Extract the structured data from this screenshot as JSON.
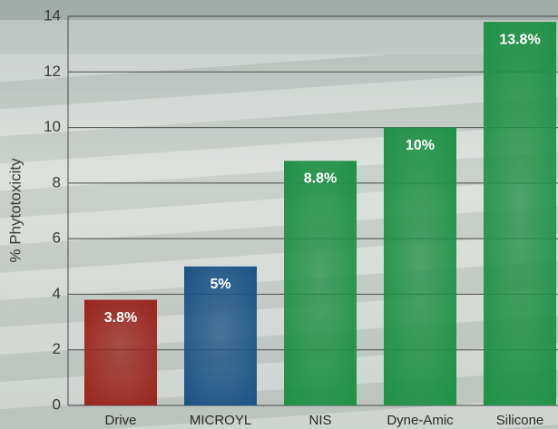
{
  "chart_data": {
    "type": "bar",
    "y_label": "% Phytotoxicity",
    "categories": [
      "Drive",
      "MICROYL",
      "NIS",
      "Dyne-Amic",
      "Silicone"
    ],
    "values": [
      3.8,
      5,
      8.8,
      10,
      13.8
    ],
    "value_labels": [
      "3.8%",
      "5%",
      "8.8%",
      "10%",
      "13.8%"
    ],
    "colors": [
      "#9a241d",
      "#1b5486",
      "#1f9146",
      "#1f9146",
      "#1f9146"
    ],
    "ylim": [
      0,
      14
    ],
    "yticks": [
      0,
      2,
      4,
      6,
      8,
      10,
      12,
      14
    ],
    "grid": true
  }
}
